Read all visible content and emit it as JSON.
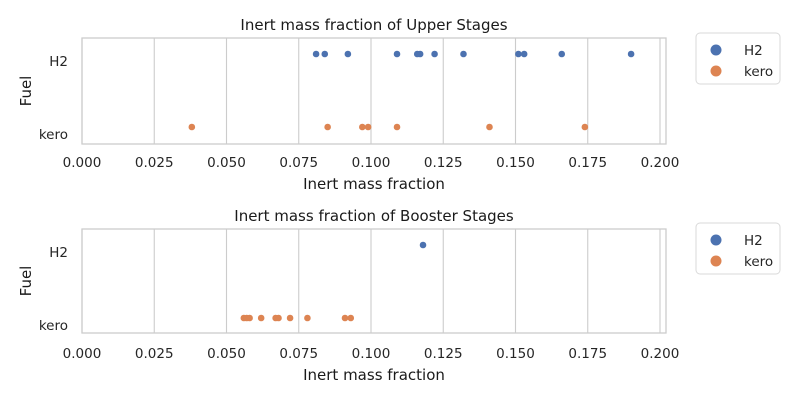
{
  "colors": {
    "H2": "#4c72b0",
    "kero": "#dd8452",
    "grid": "#cccccc",
    "frame": "#cccccc",
    "background": "#ffffff"
  },
  "chart_data": [
    {
      "type": "scatter",
      "style": "strip-plot",
      "title": "Inert mass fraction of Upper Stages",
      "xlabel": "Inert mass fraction",
      "ylabel": "Fuel",
      "xlim": [
        0.0,
        0.2
      ],
      "xticks": [
        "0.000",
        "0.025",
        "0.050",
        "0.075",
        "0.100",
        "0.125",
        "0.150",
        "0.175",
        "0.200"
      ],
      "categories": [
        "H2",
        "kero"
      ],
      "grid": true,
      "legend_position": "outside-right",
      "legend": [
        "H2",
        "kero"
      ],
      "series": [
        {
          "name": "H2",
          "values": [
            0.081,
            0.084,
            0.092,
            0.109,
            0.116,
            0.117,
            0.122,
            0.132,
            0.151,
            0.153,
            0.166,
            0.19
          ]
        },
        {
          "name": "kero",
          "values": [
            0.038,
            0.085,
            0.097,
            0.099,
            0.109,
            0.141,
            0.174
          ]
        }
      ]
    },
    {
      "type": "scatter",
      "style": "strip-plot",
      "title": "Inert mass fraction of Booster Stages",
      "xlabel": "Inert mass fraction",
      "ylabel": "Fuel",
      "xlim": [
        0.0,
        0.2
      ],
      "xticks": [
        "0.000",
        "0.025",
        "0.050",
        "0.075",
        "0.100",
        "0.125",
        "0.150",
        "0.175",
        "0.200"
      ],
      "categories": [
        "H2",
        "kero"
      ],
      "grid": true,
      "legend_position": "outside-right",
      "legend": [
        "H2",
        "kero"
      ],
      "series": [
        {
          "name": "H2",
          "values": [
            0.118
          ]
        },
        {
          "name": "kero",
          "values": [
            0.056,
            0.057,
            0.058,
            0.062,
            0.067,
            0.068,
            0.072,
            0.078,
            0.091,
            0.093
          ]
        }
      ]
    }
  ]
}
